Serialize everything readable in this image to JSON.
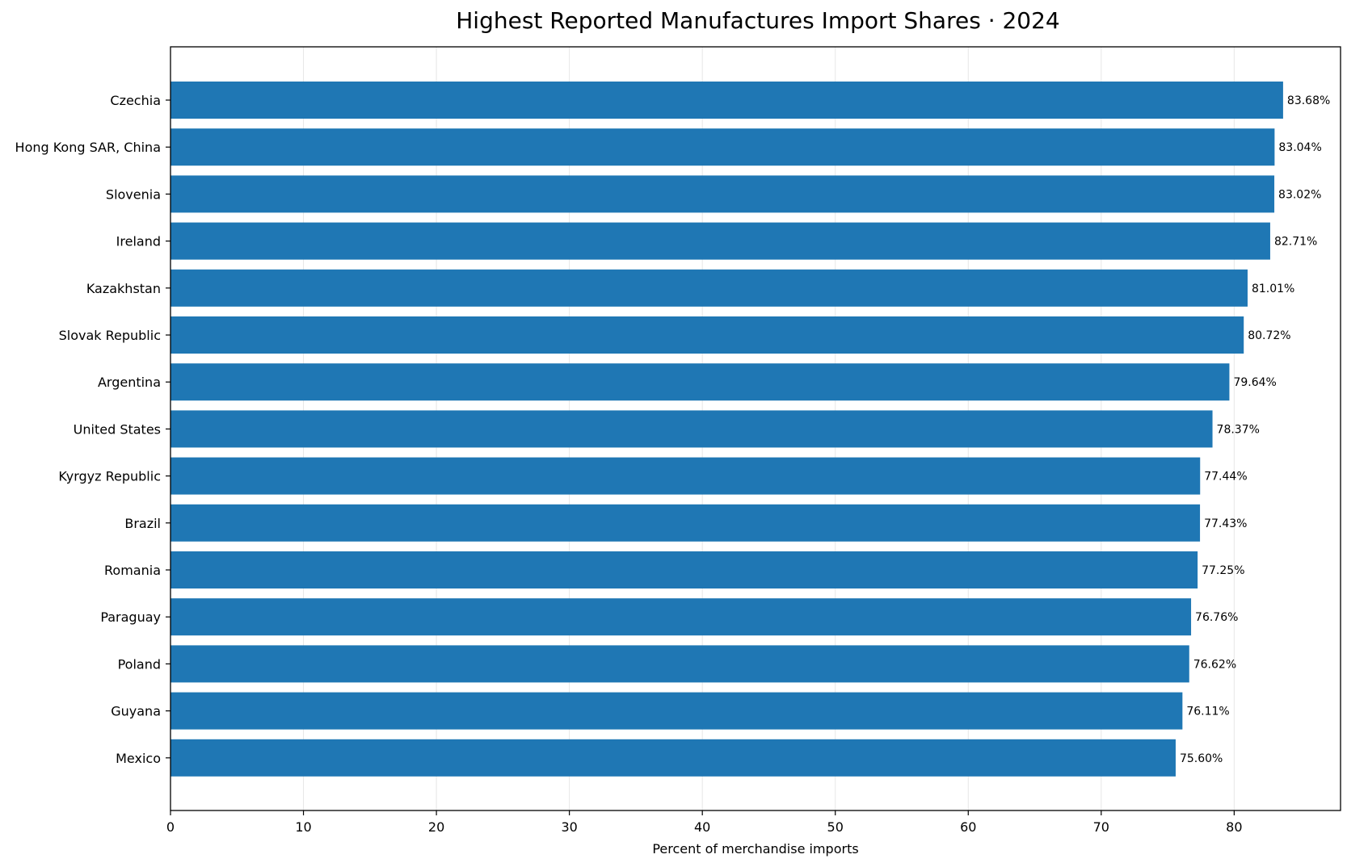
{
  "chart_data": {
    "type": "bar",
    "orientation": "horizontal",
    "title": "Highest Reported Manufactures Import Shares · 2024",
    "xlabel": "Percent of merchandise imports",
    "ylabel": "",
    "xlim": [
      0,
      88
    ],
    "xticks": [
      0,
      10,
      20,
      30,
      40,
      50,
      60,
      70,
      80
    ],
    "grid": "vertical",
    "bar_color": "#1f77b4",
    "categories": [
      "Czechia",
      "Hong Kong SAR, China",
      "Slovenia",
      "Ireland",
      "Kazakhstan",
      "Slovak Republic",
      "Argentina",
      "United States",
      "Kyrgyz Republic",
      "Brazil",
      "Romania",
      "Paraguay",
      "Poland",
      "Guyana",
      "Mexico"
    ],
    "values": [
      83.68,
      83.04,
      83.02,
      82.71,
      81.01,
      80.72,
      79.64,
      78.37,
      77.44,
      77.43,
      77.25,
      76.76,
      76.62,
      76.11,
      75.6
    ],
    "value_labels": [
      "83.68%",
      "83.04%",
      "83.02%",
      "82.71%",
      "81.01%",
      "80.72%",
      "79.64%",
      "78.37%",
      "77.44%",
      "77.43%",
      "77.25%",
      "76.76%",
      "76.62%",
      "76.11%",
      "75.60%"
    ]
  }
}
